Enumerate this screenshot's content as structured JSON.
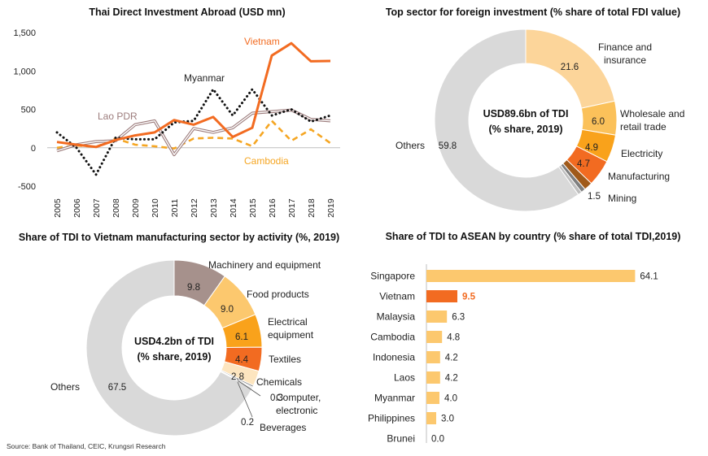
{
  "source": "Source: Bank of Thailand, CEIC, Krungsri Research",
  "chart_data": [
    {
      "type": "line",
      "title": "Thai Direct Investment Abroad (USD mn)",
      "x": [
        "2005",
        "2006",
        "2007",
        "2008",
        "2009",
        "2010",
        "2011",
        "2012",
        "2013",
        "2014",
        "2015",
        "2016",
        "2017",
        "2018",
        "2019"
      ],
      "ylim": [
        -500,
        1500
      ],
      "yticks": [
        -500,
        0,
        500,
        1000,
        1500
      ],
      "ytick_labels": [
        "-500",
        "0",
        "500",
        "1,000",
        "1,500"
      ],
      "series": [
        {
          "name": "Vietnam",
          "color": "#f26b21",
          "style": "solid",
          "values": [
            75,
            40,
            10,
            100,
            160,
            200,
            360,
            300,
            400,
            140,
            260,
            1200,
            1360,
            1125,
            1130
          ]
        },
        {
          "name": "Myanmar",
          "color": "#111111",
          "style": "dotted",
          "values": [
            200,
            0,
            -350,
            130,
            110,
            110,
            330,
            350,
            760,
            420,
            760,
            420,
            500,
            340,
            420
          ]
        },
        {
          "name": "Lao PDR",
          "color": "#9c7c7c",
          "style": "double",
          "values": [
            -40,
            40,
            80,
            90,
            300,
            350,
            -90,
            250,
            200,
            260,
            450,
            470,
            490,
            370,
            350
          ]
        },
        {
          "name": "Cambodia",
          "color": "#f5a623",
          "style": "dashed",
          "values": [
            0,
            30,
            10,
            120,
            40,
            20,
            -10,
            120,
            130,
            120,
            20,
            350,
            90,
            240,
            60
          ]
        }
      ]
    },
    {
      "type": "pie",
      "title": "Top sector for foreign investment (% share of total FDI value)",
      "center_label": [
        "USD89.6bn of TDI",
        "(% share, 2019)"
      ],
      "slices": [
        {
          "label": "Finance and insurance",
          "value": 21.6,
          "value_label": "21.6",
          "color": "#fcd59a"
        },
        {
          "label": "Wholesale and retail trade",
          "value": 6.0,
          "value_label": "6.0",
          "color": "#fbc15a"
        },
        {
          "label": "Electricity",
          "value": 4.9,
          "value_label": "4.9",
          "color": "#f9a21b"
        },
        {
          "label": "Manufacturing",
          "value": 4.7,
          "value_label": "4.7",
          "color": "#f26b21"
        },
        {
          "label": "Mining",
          "value": 1.5,
          "value_label": "1.5",
          "color": "#a05a1a"
        },
        {
          "label": "",
          "value": 0.8,
          "value_label": "",
          "color": "#7f7f7f"
        },
        {
          "label": "",
          "value": 0.7,
          "value_label": "",
          "color": "#bfbfbf"
        },
        {
          "label": "Others",
          "value": 59.8,
          "value_label": "59.8",
          "color": "#d9d9d9"
        }
      ]
    },
    {
      "type": "pie",
      "title": "Share of TDI to Vietnam manufacturing sector by activity (%, 2019)",
      "center_label": [
        "USD4.2bn of TDI",
        "(% share, 2019)"
      ],
      "slices": [
        {
          "label": "Machinery and equipment",
          "value": 9.8,
          "value_label": "9.8",
          "color": "#a6918c"
        },
        {
          "label": "Food products",
          "value": 9.0,
          "value_label": "9.0",
          "color": "#fcc86e"
        },
        {
          "label": "Electrical equipment",
          "value": 6.1,
          "value_label": "6.1",
          "color": "#f9a21b"
        },
        {
          "label": "Textiles",
          "value": 4.4,
          "value_label": "4.4",
          "color": "#f26b21"
        },
        {
          "label": "Chemicals",
          "value": 2.8,
          "value_label": "2.8",
          "color": "#fde5bf"
        },
        {
          "label": "Computer, electronic",
          "value": 0.3,
          "value_label": "0.3",
          "color": "#7f7f7f"
        },
        {
          "label": "Beverages",
          "value": 0.2,
          "value_label": "0.2",
          "color": "#bfbfbf"
        },
        {
          "label": "Others",
          "value": 67.5,
          "value_label": "67.5",
          "color": "#d9d9d9"
        }
      ]
    },
    {
      "type": "bar",
      "orientation": "horizontal",
      "title": "Share of TDI to ASEAN by country (% share of total TDI,2019)",
      "categories": [
        "Singapore",
        "Vietnam",
        "Malaysia",
        "Cambodia",
        "Indonesia",
        "Laos",
        "Myanmar",
        "Philippines",
        "Brunei"
      ],
      "values": [
        64.1,
        9.5,
        6.3,
        4.8,
        4.2,
        4.2,
        4.0,
        3.0,
        0.0
      ],
      "value_labels": [
        "64.1",
        "9.5",
        "6.3",
        "4.8",
        "4.2",
        "4.2",
        "4.0",
        "3.0",
        "0.0"
      ],
      "highlight": "Vietnam",
      "colors": {
        "bar": "#fcc86e",
        "highlight": "#f26b21"
      }
    }
  ]
}
